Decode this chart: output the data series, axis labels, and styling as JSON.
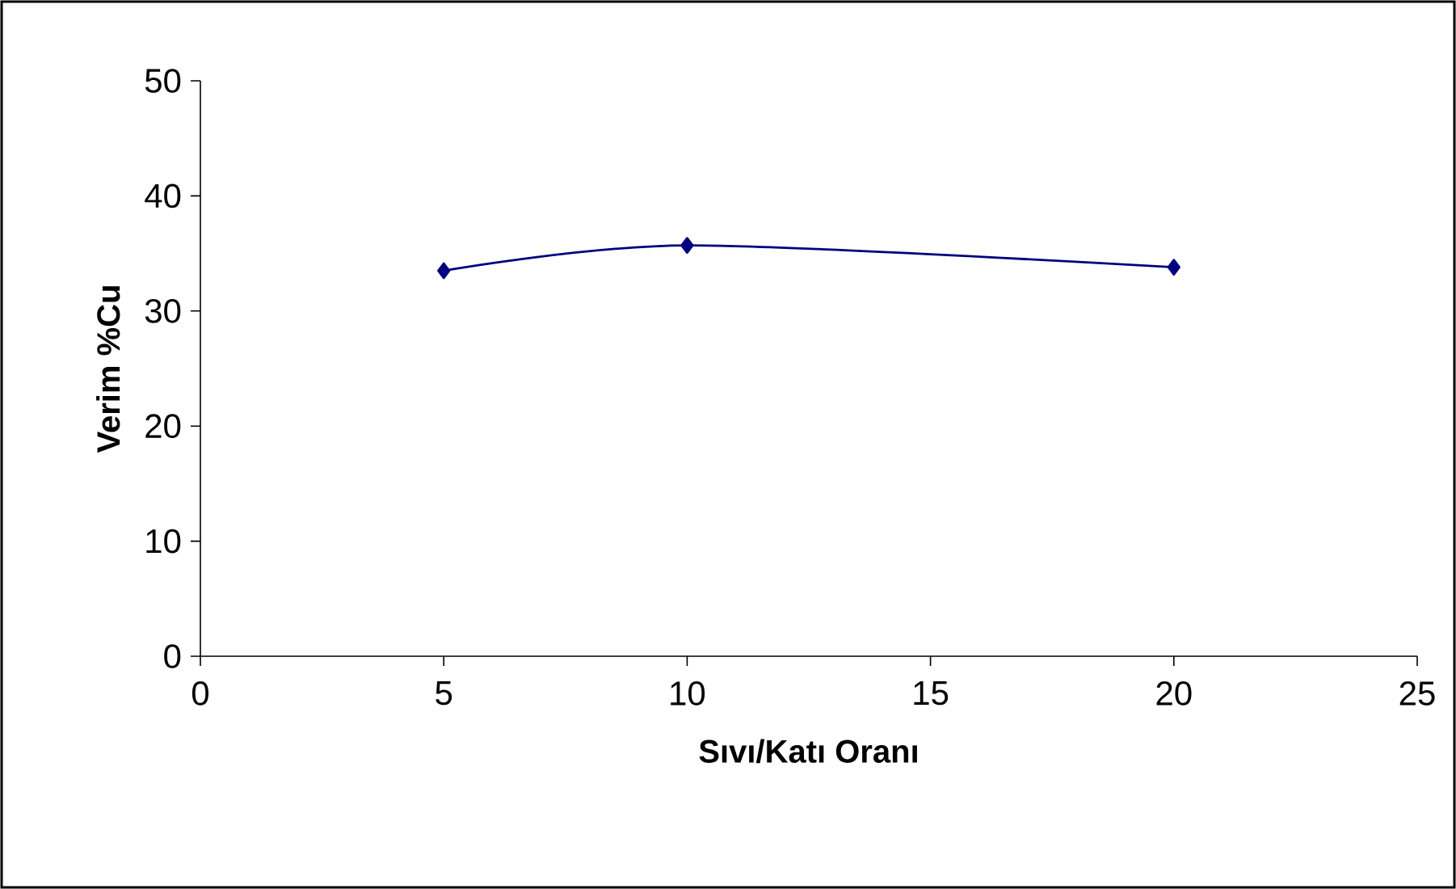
{
  "chart_data": {
    "type": "line",
    "xlabel": "Sıvı/Katı Oranı",
    "ylabel": "Verim %Cu",
    "x": [
      5,
      10,
      20
    ],
    "series": [
      {
        "color": "#000080",
        "values": [
          33.5,
          35.7,
          33.8
        ]
      }
    ],
    "xlim": [
      0,
      25
    ],
    "xticks": [
      0,
      5,
      10,
      15,
      20,
      25
    ],
    "ylim": [
      0,
      50
    ],
    "yticks": [
      0,
      10,
      20,
      30,
      40,
      50
    ],
    "marker": "diamond",
    "line_style": "solid"
  }
}
